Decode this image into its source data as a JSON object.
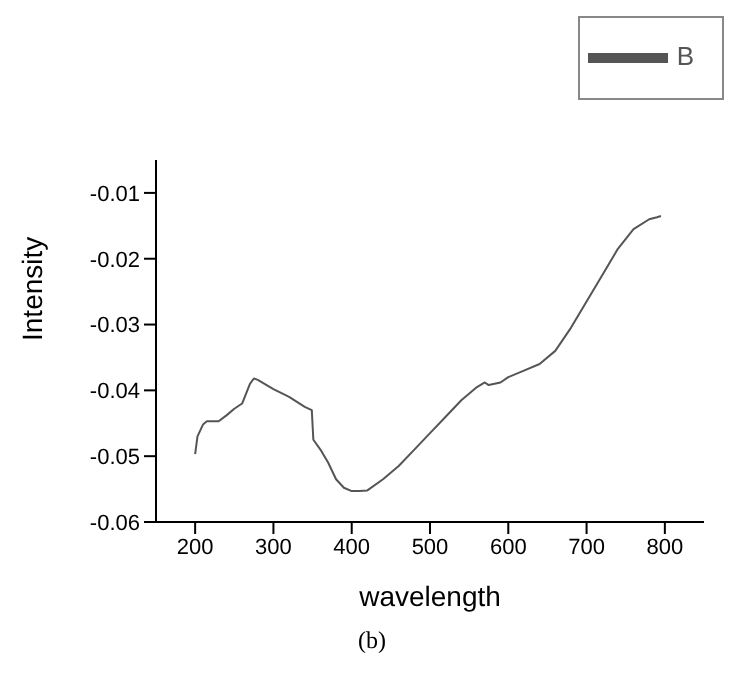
{
  "chart_data": {
    "type": "line",
    "xlabel": "wavelength",
    "ylabel": "Intensity",
    "annotations": [
      "(b)"
    ],
    "xlim": [
      150,
      850
    ],
    "xticks": [
      200,
      300,
      400,
      500,
      600,
      700,
      800
    ],
    "ylim": [
      -0.06,
      -0.005
    ],
    "yticks": [
      -0.06,
      -0.05,
      -0.04,
      -0.03,
      -0.02,
      -0.01
    ],
    "grid": false,
    "legend": "top right",
    "marker": "none",
    "line_style": "solid",
    "x": [
      200,
      203,
      210,
      215,
      230,
      240,
      250,
      260,
      270,
      275,
      280,
      300,
      320,
      340,
      349,
      351,
      360,
      370,
      380,
      390,
      400,
      410,
      420,
      440,
      460,
      480,
      500,
      520,
      540,
      560,
      570,
      575,
      590,
      600,
      620,
      640,
      660,
      680,
      700,
      720,
      740,
      760,
      780,
      790,
      795
    ],
    "series": [
      {
        "name": "B",
        "color": "#555555",
        "values": [
          -0.0497,
          -0.047,
          -0.0452,
          -0.0447,
          -0.0447,
          -0.0438,
          -0.0428,
          -0.042,
          -0.039,
          -0.0382,
          -0.0384,
          -0.0398,
          -0.041,
          -0.0425,
          -0.043,
          -0.0475,
          -0.049,
          -0.051,
          -0.0535,
          -0.0548,
          -0.0553,
          -0.0553,
          -0.0552,
          -0.0535,
          -0.0515,
          -0.049,
          -0.0465,
          -0.044,
          -0.0415,
          -0.0395,
          -0.0388,
          -0.0392,
          -0.0388,
          -0.038,
          -0.037,
          -0.036,
          -0.034,
          -0.0305,
          -0.0265,
          -0.0225,
          -0.0185,
          -0.0155,
          -0.014,
          -0.0137,
          -0.0135
        ]
      }
    ]
  }
}
